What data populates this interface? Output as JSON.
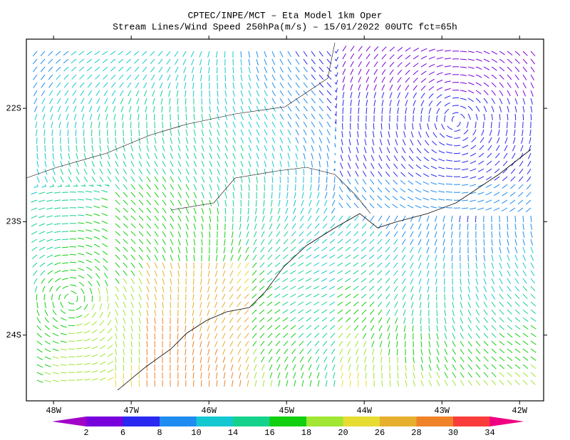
{
  "chart_data": {
    "type": "streamline",
    "title": "CPTEC/INPE/MCT –  Eta Model 1km Oper",
    "subtitle": "Stream Lines/Wind Speed 250hPa(m/s) – 15/01/2022 00UTC fct=65h",
    "xlim": [
      -48.35,
      -41.69
    ],
    "ylim": [
      -24.58,
      -21.39
    ],
    "xticks": [
      {
        "value": -48,
        "label": "48W"
      },
      {
        "value": -47,
        "label": "47W"
      },
      {
        "value": -46,
        "label": "46W"
      },
      {
        "value": -45,
        "label": "45W"
      },
      {
        "value": -44,
        "label": "44W"
      },
      {
        "value": -43,
        "label": "43W"
      },
      {
        "value": -42,
        "label": "42W"
      }
    ],
    "yticks": [
      {
        "value": -22,
        "label": "22S"
      },
      {
        "value": -23,
        "label": "23S"
      },
      {
        "value": -24,
        "label": "24S"
      }
    ],
    "colorbar": {
      "levels": [
        2,
        6,
        8,
        10,
        14,
        16,
        18,
        20,
        26,
        28,
        30,
        34
      ],
      "colors": [
        "#a000c8",
        "#7800dc",
        "#2828f0",
        "#1e8cf0",
        "#14c8d2",
        "#14d28c",
        "#10d010",
        "#a0e632",
        "#e6dc32",
        "#e6af2d",
        "#f08228",
        "#fa3c3c",
        "#f00082"
      ]
    }
  }
}
